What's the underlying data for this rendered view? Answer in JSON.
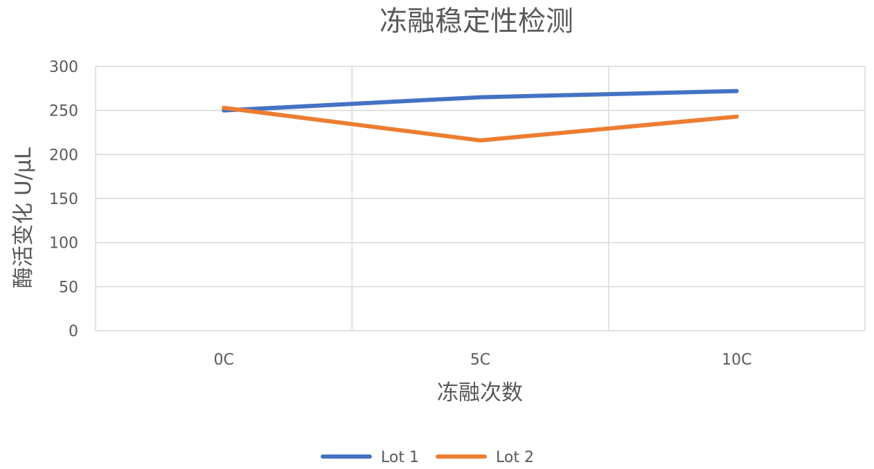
{
  "chart_data": {
    "type": "line",
    "title": "冻融稳定性检测",
    "xlabel": "冻融次数",
    "ylabel": "酶活变化 U/μL",
    "categories": [
      "0C",
      "5C",
      "10C"
    ],
    "series": [
      {
        "name": "Lot 1",
        "color": "#4472C4",
        "values": [
          250,
          265,
          272
        ]
      },
      {
        "name": "Lot 2",
        "color": "#ED7D31",
        "values": [
          253,
          216,
          243
        ]
      }
    ],
    "ylim": [
      0,
      300
    ],
    "yticks": [
      0,
      50,
      100,
      150,
      200,
      250,
      300
    ],
    "grid": true,
    "legend_position": "bottom"
  }
}
